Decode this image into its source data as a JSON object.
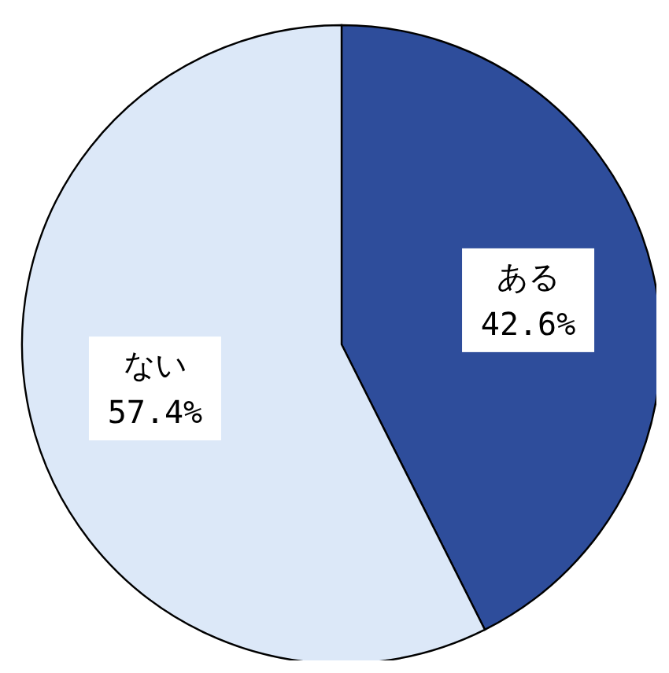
{
  "chart_data": {
    "type": "pie",
    "categories": [
      "ある",
      "ない"
    ],
    "values": [
      42.6,
      57.4
    ],
    "colors": [
      "#2e4d9b",
      "#dce8f8"
    ],
    "value_labels": [
      "42.6%",
      "57.4%"
    ]
  }
}
